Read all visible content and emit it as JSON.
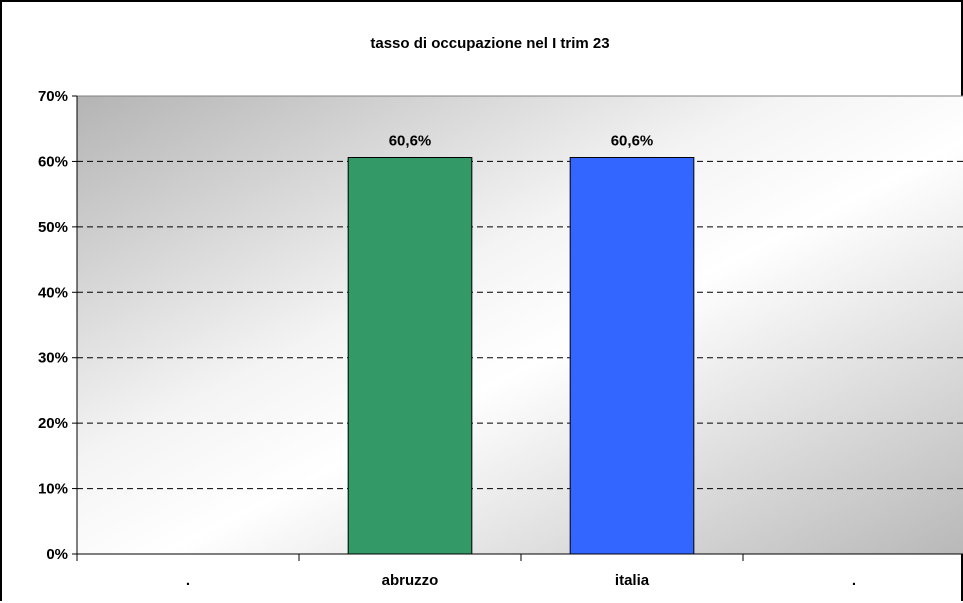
{
  "chart_data": {
    "type": "bar",
    "title": "tasso di occupazione nel I trim 23",
    "categories": [
      ".",
      "abruzzo",
      "italia",
      "."
    ],
    "values": [
      null,
      60.6,
      60.6,
      null
    ],
    "data_labels": [
      "",
      "60,6%",
      "60,6%",
      ""
    ],
    "bar_colors": [
      "#339966",
      "#339966",
      "#3366ff",
      "#3366ff"
    ],
    "yticks": [
      "0%",
      "10%",
      "20%",
      "30%",
      "40%",
      "50%",
      "60%",
      "70%"
    ],
    "ylim": [
      0,
      70
    ],
    "grid": true,
    "grid_style": "dashed",
    "xlabel": "",
    "ylabel": "",
    "legend": "none"
  }
}
